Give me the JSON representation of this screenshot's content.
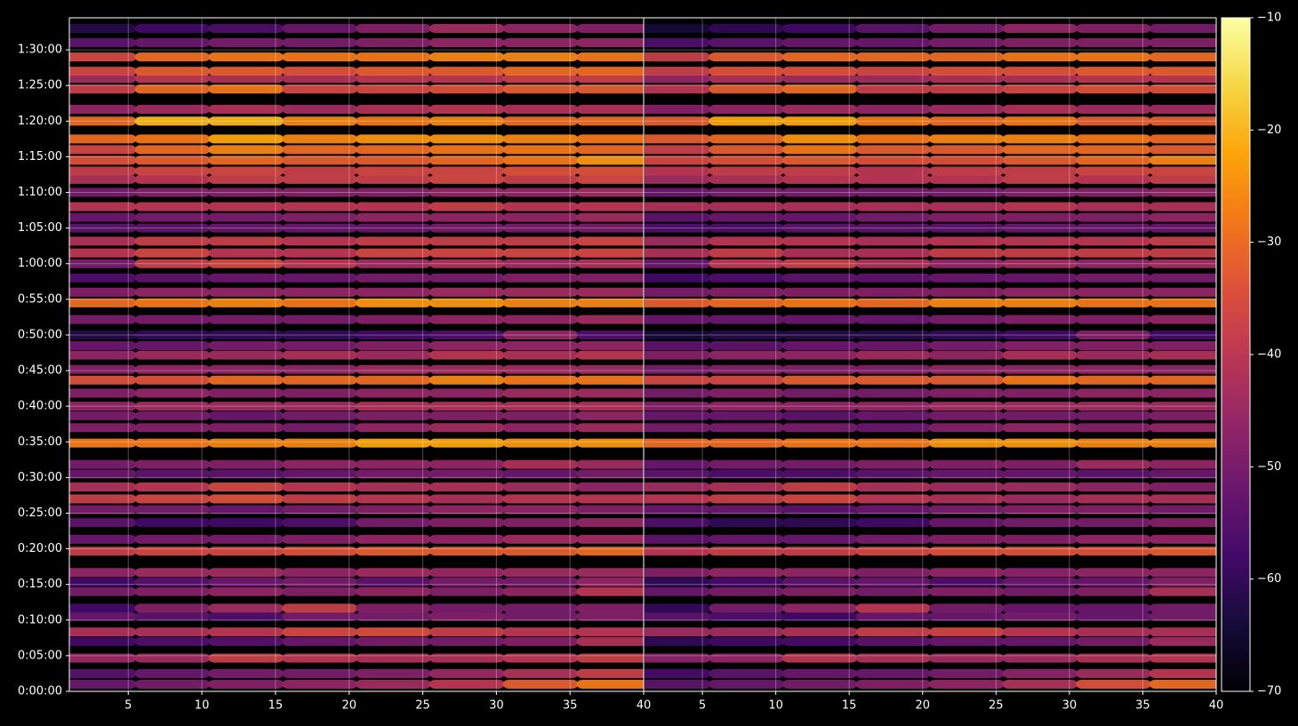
{
  "chart_data": [
    {
      "type": "heatmap",
      "colormap": "inferno",
      "grid": true,
      "x": [
        3,
        8,
        13,
        18,
        23,
        28,
        33,
        38
      ],
      "y": [
        60,
        150,
        280,
        420,
        500,
        630,
        700,
        840,
        920,
        1000,
        1180,
        1280,
        1420,
        1530,
        1620,
        1720,
        1830,
        1910,
        2090,
        2220,
        2320,
        2400,
        2510,
        2620,
        2710,
        2830,
        2910,
        3000,
        3130,
        3270,
        3360,
        3480,
        3600,
        3690,
        3790,
        3900,
        3990,
        4080,
        4200,
        4310,
        4380,
        4470,
        4560,
        4650,
        4800,
        4900,
        5070,
        5160,
        5220,
        5340,
        5460,
        5580
      ],
      "z": [
        [
          -52,
          -50,
          -48,
          -46,
          -44,
          -40,
          -32,
          -28
        ],
        [
          -55,
          -52,
          -50,
          -50,
          -48,
          -45,
          -42,
          -38
        ],
        [
          -45,
          -44,
          -38,
          -40,
          -42,
          -42,
          -40,
          -38
        ],
        [
          -58,
          -56,
          -55,
          -52,
          -50,
          -50,
          -48,
          -42
        ],
        [
          -42,
          -42,
          -40,
          -36,
          -35,
          -38,
          -40,
          -40
        ],
        [
          -52,
          -54,
          -56,
          -50,
          -50,
          -48,
          -50,
          -48
        ],
        [
          -58,
          -48,
          -44,
          -38,
          -48,
          -50,
          -50,
          -48
        ],
        [
          -50,
          -48,
          -46,
          -48,
          -46,
          -48,
          -46,
          -40
        ],
        [
          -58,
          -55,
          -52,
          -50,
          -54,
          -50,
          -50,
          -46
        ],
        [
          -46,
          -44,
          -44,
          -46,
          -44,
          -45,
          -44,
          -44
        ],
        [
          -38,
          -36,
          -36,
          -34,
          -32,
          -32,
          -32,
          -30
        ],
        [
          -52,
          -50,
          -50,
          -48,
          -46,
          -46,
          -44,
          -44
        ],
        [
          -54,
          -58,
          -58,
          -56,
          -50,
          -48,
          -48,
          -46
        ],
        [
          -50,
          -50,
          -52,
          -50,
          -48,
          -46,
          -46,
          -48
        ],
        [
          -38,
          -36,
          -34,
          -38,
          -40,
          -42,
          -40,
          -40
        ],
        [
          -42,
          -40,
          -36,
          -40,
          -42,
          -42,
          -44,
          -46
        ],
        [
          -52,
          -54,
          -54,
          -52,
          -50,
          -50,
          -52,
          -50
        ],
        [
          -50,
          -48,
          -48,
          -46,
          -46,
          -46,
          -42,
          -44
        ],
        [
          -28,
          -28,
          -26,
          -26,
          -22,
          -22,
          -24,
          -24
        ],
        [
          -48,
          -48,
          -48,
          -50,
          -46,
          -44,
          -46,
          -44
        ],
        [
          -50,
          -50,
          -52,
          -50,
          -48,
          -48,
          -48,
          -46
        ],
        [
          -46,
          -44,
          -44,
          -44,
          -42,
          -42,
          -42,
          -42
        ],
        [
          -48,
          -46,
          -48,
          -48,
          -46,
          -46,
          -44,
          -44
        ],
        [
          -34,
          -34,
          -30,
          -30,
          -30,
          -26,
          -28,
          -28
        ],
        [
          -48,
          -46,
          -46,
          -46,
          -44,
          -44,
          -44,
          -44
        ],
        [
          -46,
          -44,
          -44,
          -42,
          -44,
          -40,
          -42,
          -40
        ],
        [
          -52,
          -52,
          -50,
          -50,
          -48,
          -46,
          -46,
          -46
        ],
        [
          -62,
          -60,
          -60,
          -60,
          -58,
          -56,
          -46,
          -56
        ],
        [
          -50,
          -50,
          -50,
          -50,
          -48,
          -46,
          -46,
          -44
        ],
        [
          -30,
          -28,
          -26,
          -28,
          -24,
          -24,
          -26,
          -26
        ],
        [
          -48,
          -46,
          -46,
          -46,
          -46,
          -44,
          -44,
          -44
        ],
        [
          -56,
          -54,
          -52,
          -52,
          -50,
          -50,
          -48,
          -48
        ],
        [
          -50,
          -38,
          -36,
          -40,
          -44,
          -42,
          -44,
          -42
        ],
        [
          -40,
          -36,
          -40,
          -40,
          -36,
          -36,
          -36,
          -36
        ],
        [
          -42,
          -38,
          -38,
          -40,
          -38,
          -38,
          -38,
          -36
        ],
        [
          -54,
          -54,
          -52,
          -52,
          -52,
          -50,
          -50,
          -50
        ],
        [
          -52,
          -50,
          -50,
          -48,
          -46,
          -46,
          -46,
          -44
        ],
        [
          -40,
          -40,
          -40,
          -40,
          -40,
          -38,
          -40,
          -40
        ],
        [
          -50,
          -48,
          -48,
          -48,
          -48,
          -46,
          -46,
          -44
        ],
        [
          -42,
          -40,
          -38,
          -38,
          -38,
          -36,
          -38,
          -36
        ],
        [
          -38,
          -36,
          -36,
          -38,
          -36,
          -36,
          -34,
          -34
        ],
        [
          -34,
          -32,
          -30,
          -32,
          -32,
          -30,
          -28,
          -24
        ],
        [
          -36,
          -30,
          -26,
          -30,
          -30,
          -28,
          -28,
          -30
        ],
        [
          -30,
          -28,
          -22,
          -26,
          -24,
          -24,
          -26,
          -28
        ],
        [
          -30,
          -20,
          -20,
          -26,
          -28,
          -26,
          -30,
          -30
        ],
        [
          -46,
          -44,
          -42,
          -44,
          -42,
          -40,
          -42,
          -42
        ],
        [
          -38,
          -30,
          -28,
          -36,
          -36,
          -34,
          -32,
          -32
        ],
        [
          -44,
          -40,
          -42,
          -42,
          -40,
          -40,
          -38,
          -38
        ],
        [
          -36,
          -32,
          -32,
          -34,
          -32,
          -32,
          -30,
          -30
        ],
        [
          -36,
          -30,
          -28,
          -28,
          -28,
          -26,
          -26,
          -28
        ],
        [
          -54,
          -52,
          -50,
          -50,
          -48,
          -46,
          -46,
          -46
        ],
        [
          -62,
          -58,
          -56,
          -52,
          -48,
          -44,
          -46,
          -48
        ]
      ],
      "zlim": [
        -70,
        -10
      ],
      "xlim": [
        1,
        40
      ],
      "xticks": [
        5,
        10,
        15,
        20,
        25,
        30,
        35,
        40
      ],
      "ylim": [
        0,
        5670
      ],
      "yticks": [
        {
          "value": 0,
          "label": "0:00:00"
        },
        {
          "value": 300,
          "label": "0:05:00"
        },
        {
          "value": 600,
          "label": "0:10:00"
        },
        {
          "value": 900,
          "label": "0:15:00"
        },
        {
          "value": 1200,
          "label": "0:20:00"
        },
        {
          "value": 1500,
          "label": "0:25:00"
        },
        {
          "value": 1800,
          "label": "0:30:00"
        },
        {
          "value": 2100,
          "label": "0:35:00"
        },
        {
          "value": 2400,
          "label": "0:40:00"
        },
        {
          "value": 2700,
          "label": "0:45:00"
        },
        {
          "value": 3000,
          "label": "0:50:00"
        },
        {
          "value": 3300,
          "label": "0:55:00"
        },
        {
          "value": 3600,
          "label": "1:00:00"
        },
        {
          "value": 3900,
          "label": "1:05:00"
        },
        {
          "value": 4200,
          "label": "1:10:00"
        },
        {
          "value": 4500,
          "label": "1:15:00"
        },
        {
          "value": 4800,
          "label": "1:20:00"
        },
        {
          "value": 5100,
          "label": "1:25:00"
        },
        {
          "value": 5400,
          "label": "1:30:00"
        }
      ]
    },
    {
      "type": "heatmap",
      "colormap": "inferno",
      "grid": true,
      "x": [
        3,
        8,
        13,
        18,
        23,
        28,
        33,
        38
      ],
      "y": [
        60,
        150,
        280,
        420,
        500,
        630,
        700,
        840,
        920,
        1000,
        1180,
        1280,
        1420,
        1530,
        1620,
        1720,
        1830,
        1910,
        2090,
        2220,
        2320,
        2400,
        2510,
        2620,
        2710,
        2830,
        2910,
        3000,
        3130,
        3270,
        3360,
        3480,
        3600,
        3690,
        3790,
        3900,
        3990,
        4080,
        4200,
        4310,
        4380,
        4470,
        4560,
        4650,
        4800,
        4900,
        5070,
        5160,
        5220,
        5340,
        5460,
        5580
      ],
      "z": [
        [
          -54,
          -52,
          -50,
          -48,
          -46,
          -42,
          -34,
          -30
        ],
        [
          -57,
          -54,
          -52,
          -52,
          -50,
          -47,
          -44,
          -40
        ],
        [
          -47,
          -46,
          -40,
          -42,
          -44,
          -44,
          -42,
          -40
        ],
        [
          -60,
          -58,
          -57,
          -54,
          -52,
          -52,
          -50,
          -44
        ],
        [
          -44,
          -44,
          -42,
          -38,
          -37,
          -40,
          -42,
          -42
        ],
        [
          -54,
          -56,
          -58,
          -52,
          -52,
          -50,
          -52,
          -50
        ],
        [
          -60,
          -50,
          -46,
          -40,
          -50,
          -52,
          -52,
          -50
        ],
        [
          -52,
          -50,
          -48,
          -50,
          -48,
          -50,
          -48,
          -42
        ],
        [
          -60,
          -57,
          -54,
          -52,
          -56,
          -52,
          -52,
          -48
        ],
        [
          -48,
          -46,
          -46,
          -48,
          -46,
          -47,
          -46,
          -46
        ],
        [
          -40,
          -38,
          -38,
          -36,
          -34,
          -34,
          -34,
          -32
        ],
        [
          -54,
          -52,
          -52,
          -50,
          -48,
          -48,
          -46,
          -46
        ],
        [
          -56,
          -60,
          -60,
          -58,
          -52,
          -50,
          -50,
          -48
        ],
        [
          -52,
          -52,
          -54,
          -52,
          -50,
          -48,
          -48,
          -50
        ],
        [
          -40,
          -38,
          -36,
          -40,
          -42,
          -44,
          -42,
          -42
        ],
        [
          -44,
          -42,
          -38,
          -42,
          -44,
          -44,
          -46,
          -48
        ],
        [
          -54,
          -56,
          -56,
          -54,
          -52,
          -52,
          -54,
          -52
        ],
        [
          -52,
          -50,
          -50,
          -48,
          -48,
          -48,
          -44,
          -46
        ],
        [
          -30,
          -30,
          -28,
          -28,
          -24,
          -24,
          -26,
          -26
        ],
        [
          -50,
          -50,
          -50,
          -52,
          -48,
          -46,
          -48,
          -46
        ],
        [
          -52,
          -52,
          -54,
          -52,
          -50,
          -50,
          -50,
          -48
        ],
        [
          -48,
          -46,
          -46,
          -46,
          -44,
          -44,
          -44,
          -44
        ],
        [
          -50,
          -48,
          -50,
          -50,
          -48,
          -48,
          -46,
          -46
        ],
        [
          -36,
          -36,
          -32,
          -32,
          -32,
          -28,
          -30,
          -30
        ],
        [
          -50,
          -48,
          -48,
          -48,
          -46,
          -46,
          -46,
          -46
        ],
        [
          -48,
          -46,
          -46,
          -44,
          -46,
          -42,
          -44,
          -42
        ],
        [
          -54,
          -54,
          -52,
          -52,
          -50,
          -48,
          -48,
          -48
        ],
        [
          -64,
          -62,
          -62,
          -62,
          -60,
          -58,
          -48,
          -58
        ],
        [
          -52,
          -52,
          -52,
          -52,
          -50,
          -48,
          -48,
          -46
        ],
        [
          -32,
          -30,
          -28,
          -30,
          -26,
          -26,
          -28,
          -28
        ],
        [
          -50,
          -48,
          -48,
          -48,
          -48,
          -46,
          -46,
          -46
        ],
        [
          -58,
          -56,
          -54,
          -54,
          -52,
          -52,
          -50,
          -50
        ],
        [
          -52,
          -40,
          -38,
          -42,
          -46,
          -44,
          -46,
          -44
        ],
        [
          -42,
          -38,
          -42,
          -42,
          -38,
          -38,
          -38,
          -38
        ],
        [
          -44,
          -40,
          -40,
          -42,
          -40,
          -40,
          -40,
          -38
        ],
        [
          -56,
          -56,
          -54,
          -54,
          -54,
          -52,
          -52,
          -52
        ],
        [
          -54,
          -52,
          -52,
          -50,
          -48,
          -48,
          -48,
          -46
        ],
        [
          -42,
          -42,
          -42,
          -42,
          -42,
          -40,
          -42,
          -42
        ],
        [
          -52,
          -50,
          -50,
          -50,
          -50,
          -48,
          -48,
          -46
        ],
        [
          -44,
          -42,
          -40,
          -40,
          -40,
          -38,
          -40,
          -38
        ],
        [
          -40,
          -38,
          -38,
          -40,
          -38,
          -38,
          -36,
          -36
        ],
        [
          -36,
          -34,
          -32,
          -34,
          -34,
          -32,
          -30,
          -26
        ],
        [
          -38,
          -32,
          -28,
          -32,
          -32,
          -30,
          -30,
          -32
        ],
        [
          -32,
          -30,
          -24,
          -28,
          -26,
          -26,
          -28,
          -30
        ],
        [
          -32,
          -22,
          -22,
          -28,
          -30,
          -28,
          -32,
          -32
        ],
        [
          -48,
          -46,
          -44,
          -46,
          -44,
          -42,
          -44,
          -44
        ],
        [
          -40,
          -32,
          -30,
          -38,
          -38,
          -36,
          -34,
          -34
        ],
        [
          -46,
          -42,
          -44,
          -44,
          -42,
          -42,
          -40,
          -40
        ],
        [
          -38,
          -34,
          -34,
          -36,
          -34,
          -34,
          -32,
          -32
        ],
        [
          -38,
          -32,
          -30,
          -30,
          -30,
          -28,
          -28,
          -30
        ],
        [
          -56,
          -54,
          -52,
          -52,
          -50,
          -48,
          -48,
          -48
        ],
        [
          -64,
          -60,
          -58,
          -54,
          -50,
          -46,
          -48,
          -50
        ]
      ],
      "zlim": [
        -70,
        -10
      ],
      "xlim": [
        1,
        40
      ],
      "xticks": [
        5,
        10,
        15,
        20,
        25,
        30,
        35,
        40
      ],
      "ylim": [
        0,
        5670
      ],
      "colorbar": {
        "ticks": [
          {
            "value": -70,
            "label": "−70"
          },
          {
            "value": -60,
            "label": "−60"
          },
          {
            "value": -50,
            "label": "−50"
          },
          {
            "value": -40,
            "label": "−40"
          },
          {
            "value": -30,
            "label": "−30"
          },
          {
            "value": -20,
            "label": "−20"
          },
          {
            "value": -10,
            "label": "−10"
          }
        ]
      }
    }
  ]
}
